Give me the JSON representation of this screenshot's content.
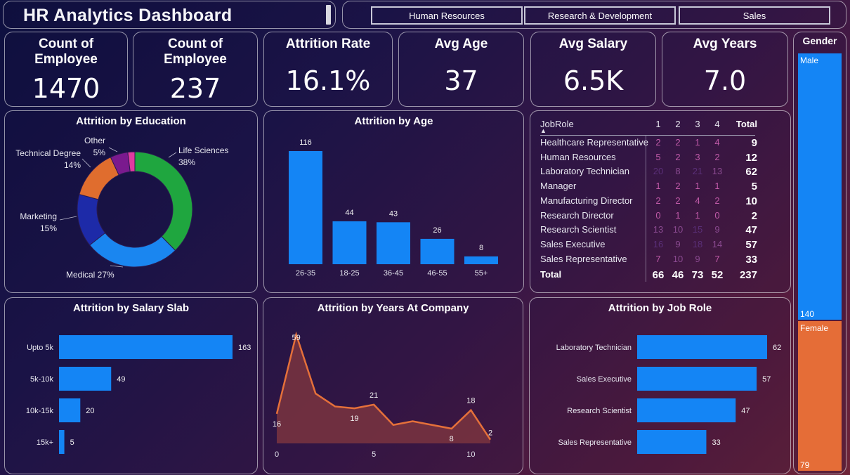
{
  "header": {
    "title": "HR Analytics Dashboard"
  },
  "slicer": {
    "buttons": [
      "Human Resources",
      "Research & Development",
      "Sales"
    ]
  },
  "kpis": [
    {
      "title_line1": "Count of",
      "title_line2": "Employee",
      "value": "1470"
    },
    {
      "title_line1": "Count of",
      "title_line2": "Employee",
      "value": "237"
    },
    {
      "title_line1": "Attrition Rate",
      "title_line2": "",
      "value": "16.1%"
    },
    {
      "title_line1": "Avg Age",
      "title_line2": "",
      "value": "37"
    },
    {
      "title_line1": "Avg Salary",
      "title_line2": "",
      "value": "6.5K"
    },
    {
      "title_line1": "Avg Years",
      "title_line2": "",
      "value": "7.0"
    }
  ],
  "education": {
    "title": "Attrition by Education",
    "slices": [
      {
        "name": "Life Sciences",
        "pct": "38%",
        "value": 38,
        "color": "#1fa63f"
      },
      {
        "name": "Medical",
        "pct": "27%",
        "value": 27,
        "color": "#1a86f0"
      },
      {
        "name": "Marketing",
        "pct": "15%",
        "value": 15,
        "color": "#1d2aa8"
      },
      {
        "name": "Technical Degree",
        "pct": "14%",
        "value": 14,
        "color": "#e06d2e"
      },
      {
        "name": "Other",
        "pct": "5%",
        "value": 5,
        "color": "#7a1a8e"
      },
      {
        "name": "",
        "pct": "",
        "value": 2,
        "color": "#e03ba0"
      }
    ]
  },
  "age": {
    "title": "Attrition by Age",
    "categories": [
      "26-35",
      "18-25",
      "36-45",
      "46-55",
      "55+"
    ],
    "values": [
      116,
      44,
      43,
      26,
      8
    ],
    "color": "#1485f5"
  },
  "matrix": {
    "header": {
      "role": "JobRole",
      "cols": [
        "1",
        "2",
        "3",
        "4"
      ],
      "total": "Total"
    },
    "rows": [
      {
        "role": "Healthcare Representative",
        "vals": [
          "2",
          "2",
          "1",
          "4"
        ],
        "total": "9"
      },
      {
        "role": "Human Resources",
        "vals": [
          "5",
          "2",
          "3",
          "2"
        ],
        "total": "12"
      },
      {
        "role": "Laboratory Technician",
        "vals": [
          "20",
          "8",
          "21",
          "13"
        ],
        "total": "62"
      },
      {
        "role": "Manager",
        "vals": [
          "1",
          "2",
          "1",
          "1"
        ],
        "total": "5"
      },
      {
        "role": "Manufacturing Director",
        "vals": [
          "2",
          "2",
          "4",
          "2"
        ],
        "total": "10"
      },
      {
        "role": "Research Director",
        "vals": [
          "0",
          "1",
          "1",
          "0"
        ],
        "total": "2"
      },
      {
        "role": "Research Scientist",
        "vals": [
          "13",
          "10",
          "15",
          "9"
        ],
        "total": "47"
      },
      {
        "role": "Sales Executive",
        "vals": [
          "16",
          "9",
          "18",
          "14"
        ],
        "total": "57"
      },
      {
        "role": "Sales Representative",
        "vals": [
          "7",
          "10",
          "9",
          "7"
        ],
        "total": "33"
      }
    ],
    "total_row": {
      "role": "Total",
      "vals": [
        "66",
        "46",
        "73",
        "52"
      ],
      "total": "237"
    }
  },
  "gender": {
    "title": "Gender",
    "items": [
      {
        "name": "Male",
        "value": 140,
        "label": "140",
        "color": "#1485f5"
      },
      {
        "name": "Female",
        "value": 79,
        "label": "79",
        "color": "#e56d37"
      }
    ]
  },
  "salary": {
    "title": "Attrition by Salary Slab",
    "categories": [
      "Upto 5k",
      "5k-10k",
      "10k-15k",
      "15k+"
    ],
    "values": [
      163,
      49,
      20,
      5
    ],
    "color": "#1485f5"
  },
  "years": {
    "title": "Attrition by Years At Company",
    "x": [
      0,
      1,
      2,
      3,
      4,
      5,
      6,
      7,
      8,
      9,
      10,
      11
    ],
    "y": [
      16,
      59,
      27,
      20,
      19,
      21,
      10,
      12,
      10,
      8,
      18,
      2
    ],
    "labels": [
      {
        "i": 0,
        "text": "16"
      },
      {
        "i": 1,
        "text": "59"
      },
      {
        "i": 4,
        "text": "19"
      },
      {
        "i": 5,
        "text": "21"
      },
      {
        "i": 9,
        "text": "8"
      },
      {
        "i": 10,
        "text": "18"
      },
      {
        "i": 11,
        "text": "2"
      }
    ],
    "ticks": [
      "0",
      "5",
      "10"
    ],
    "tick_values": [
      0,
      5,
      10
    ],
    "line_color": "#e5703a",
    "fill_color": "#7a3440"
  },
  "jobrole": {
    "title": "Attrition by Job Role",
    "categories": [
      "Laboratory Technician",
      "Sales Executive",
      "Research Scientist",
      "Sales Representative"
    ],
    "values": [
      62,
      57,
      47,
      33
    ],
    "color": "#1485f5"
  },
  "chart_data": [
    {
      "type": "pie",
      "title": "Attrition by Education",
      "categories": [
        "Life Sciences",
        "Medical",
        "Marketing",
        "Technical Degree",
        "Other"
      ],
      "values": [
        38,
        27,
        15,
        14,
        5
      ]
    },
    {
      "type": "bar",
      "title": "Attrition by Age",
      "categories": [
        "26-35",
        "18-25",
        "36-45",
        "46-55",
        "55+"
      ],
      "values": [
        116,
        44,
        43,
        26,
        8
      ]
    },
    {
      "type": "bar",
      "title": "Attrition by Salary Slab",
      "categories": [
        "Upto 5k",
        "5k-10k",
        "10k-15k",
        "15k+"
      ],
      "values": [
        163,
        49,
        20,
        5
      ]
    },
    {
      "type": "area",
      "title": "Attrition by Years At Company",
      "x": [
        0,
        1,
        2,
        3,
        4,
        5,
        6,
        7,
        8,
        9,
        10,
        11
      ],
      "y": [
        16,
        59,
        27,
        20,
        19,
        21,
        10,
        12,
        10,
        8,
        18,
        2
      ]
    },
    {
      "type": "bar",
      "title": "Attrition by Job Role",
      "categories": [
        "Laboratory Technician",
        "Sales Executive",
        "Research Scientist",
        "Sales Representative"
      ],
      "values": [
        62,
        57,
        47,
        33
      ]
    },
    {
      "type": "bar",
      "title": "Gender",
      "categories": [
        "Male",
        "Female"
      ],
      "values": [
        140,
        79
      ]
    }
  ]
}
